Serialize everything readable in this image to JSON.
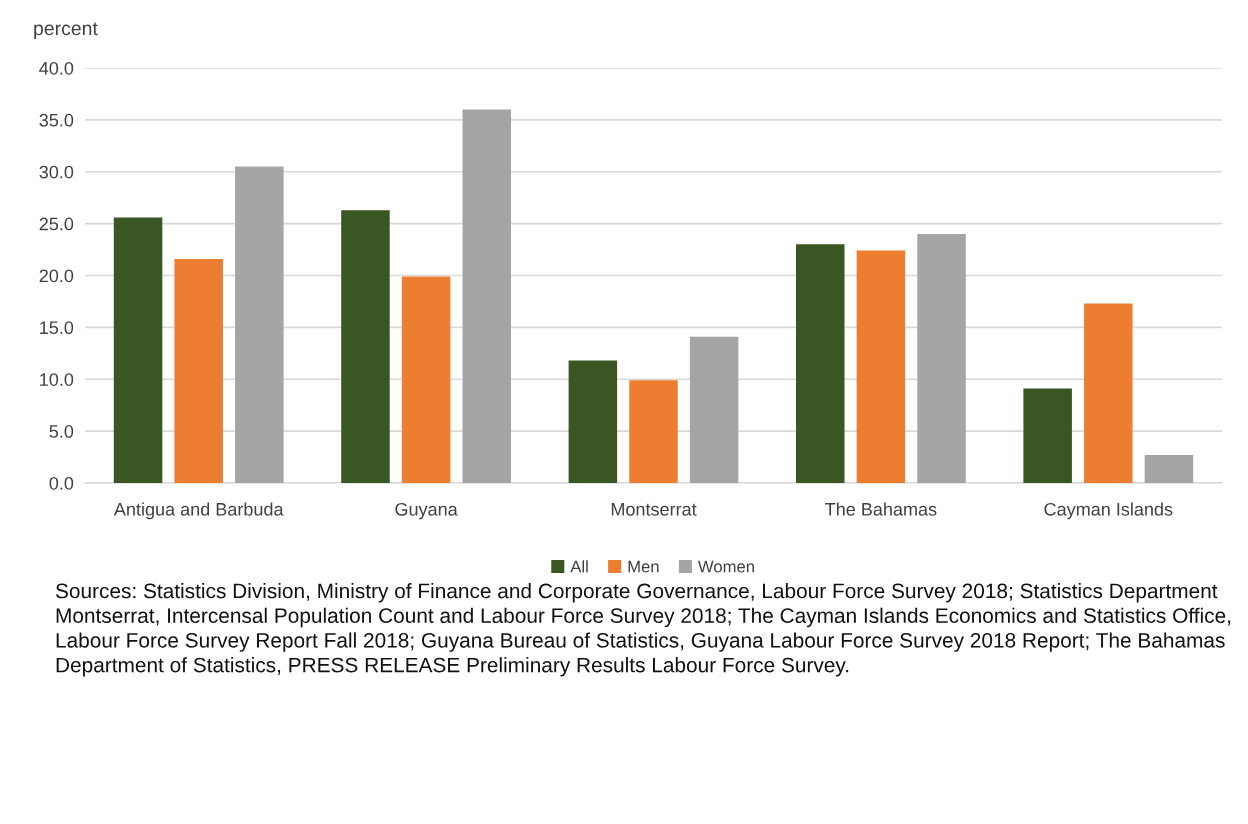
{
  "chart_data": {
    "type": "bar",
    "ylabel": "percent",
    "categories": [
      "Antigua and Barbuda",
      "Guyana",
      "Montserrat",
      "The Bahamas",
      "Cayman Islands"
    ],
    "series": [
      {
        "name": "All",
        "color": "#3a5622",
        "values": [
          25.6,
          26.3,
          11.8,
          23.0,
          9.1
        ]
      },
      {
        "name": "Men",
        "color": "#ed7d31",
        "values": [
          21.6,
          19.9,
          9.9,
          22.4,
          17.3
        ]
      },
      {
        "name": "Women",
        "color": "#a5a5a5",
        "values": [
          30.5,
          36.0,
          14.1,
          24.0,
          2.7
        ]
      }
    ],
    "ylim": [
      0,
      40
    ],
    "yticks": [
      {
        "value": 0,
        "label": "0.0"
      },
      {
        "value": 5,
        "label": "5.0"
      },
      {
        "value": 10,
        "label": "10.0"
      },
      {
        "value": 15,
        "label": "15.0"
      },
      {
        "value": 20,
        "label": "20.0"
      },
      {
        "value": 25,
        "label": "25.0"
      },
      {
        "value": 30,
        "label": "30.0"
      },
      {
        "value": 35,
        "label": "35.0"
      },
      {
        "value": 40,
        "label": "40.0"
      }
    ],
    "grid": "y",
    "legend": "bottom",
    "annotations": [
      "Sources: Statistics Division, Ministry of Finance and Corporate Governance, Labour Force Survey 2018; Statistics Department Montserrat, Intercensal Population Count and Labour Force Survey 2018; The Cayman Islands Economics and Statistics Office, Labour Force Survey Report Fall 2018; Guyana Bureau of Statistics, Guyana Labour Force Survey 2018 Report; The Bahamas Department of Statistics, PRESS RELEASE Preliminary Results Labour Force Survey."
    ]
  }
}
